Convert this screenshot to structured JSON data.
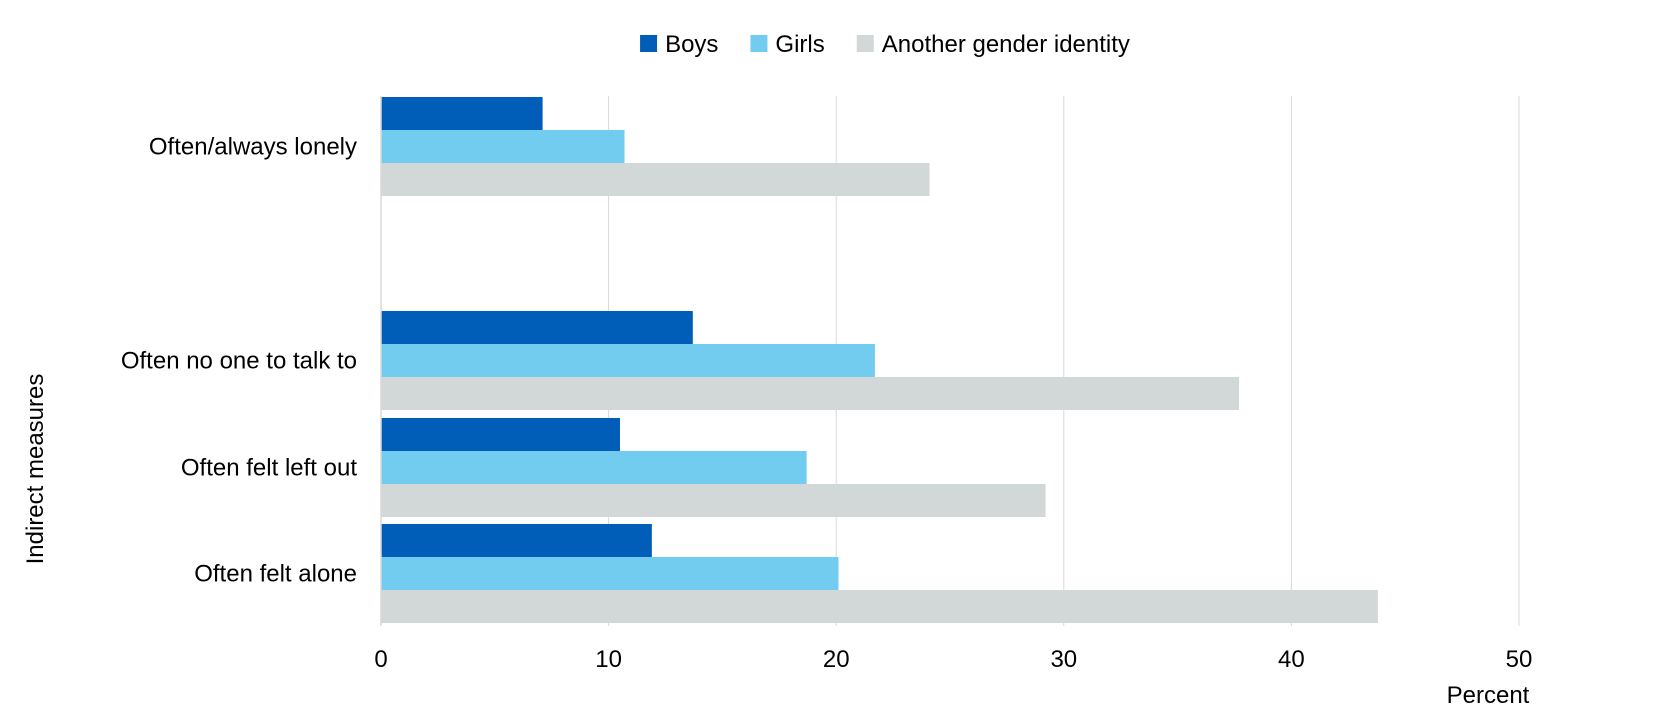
{
  "chart_data": {
    "type": "bar",
    "orientation": "horizontal",
    "xlabel": "Percent",
    "ylabel": "Indirect measures",
    "xlim": [
      0,
      50
    ],
    "xticks": [
      0,
      10,
      20,
      30,
      40,
      50
    ],
    "grid": true,
    "legend_position": "top",
    "categories": [
      "Often/always lonely",
      "Often no one to talk to",
      "Often felt left out",
      "Often felt alone"
    ],
    "series": [
      {
        "name": "Boys",
        "color": "#005EB8",
        "values": [
          7.1,
          13.7,
          10.5,
          11.9
        ]
      },
      {
        "name": "Girls",
        "color": "#71CCEF",
        "values": [
          10.7,
          21.7,
          18.7,
          20.1
        ]
      },
      {
        "name": "Another gender identity",
        "color": "#D2D7D7",
        "values": [
          24.1,
          37.7,
          29.2,
          43.8
        ]
      }
    ]
  }
}
